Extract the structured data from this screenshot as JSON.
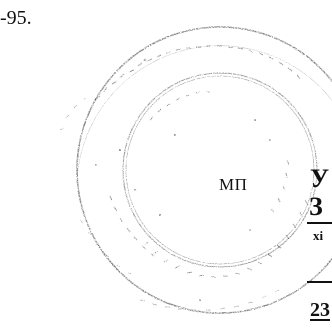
{
  "document": {
    "top_fragment": "-95.",
    "seal_mark": "МП",
    "edge_fragments": [
      "У",
      "З",
      "хі",
      "23"
    ]
  },
  "stamp": {
    "color": "#2a2a2a",
    "shape": "circle"
  }
}
